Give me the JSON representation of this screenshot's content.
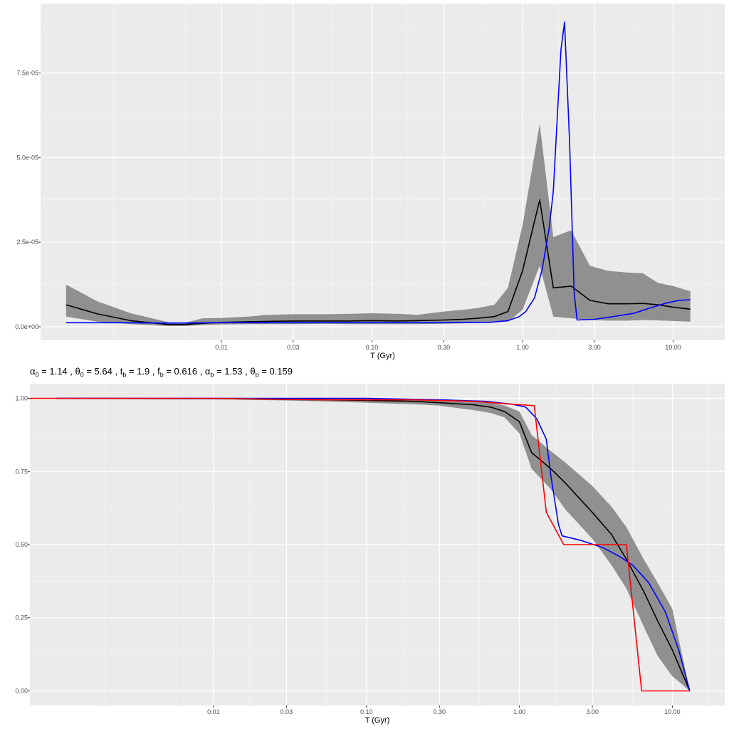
{
  "colors": {
    "panel_bg": "#EBEBEB",
    "grid_major": "#FFFFFF",
    "ribbon": "#808080",
    "median": "#000000",
    "blue_series": "#0000FF",
    "red_series": "#FF0000"
  },
  "subtitle": {
    "parts": [
      {
        "sym": "α",
        "sub": "0",
        "val": " = 1.14 , "
      },
      {
        "sym": "θ",
        "sub": "0",
        "val": " = 5.64 , "
      },
      {
        "sym": "t",
        "sub": "b",
        "val": " = 1.9 , "
      },
      {
        "sym": "f",
        "sub": "b",
        "val": " = 0.616 , "
      },
      {
        "sym": "α",
        "sub": "b",
        "val": " = 1.53 , "
      },
      {
        "sym": "θ",
        "sub": "b",
        "val": " = 0.159"
      }
    ]
  },
  "chart_data": [
    {
      "type": "line",
      "xlabel": "T (Gyr)",
      "ylabel": "",
      "x_scale": "log10",
      "xlim": [
        0.00063,
        22.0
      ],
      "ylim": [
        -4e-06,
        9.55e-05
      ],
      "x_ticks": [
        {
          "value": 0.01,
          "label": "0.01"
        },
        {
          "value": 0.03,
          "label": "0.03"
        },
        {
          "value": 0.1,
          "label": "0.10"
        },
        {
          "value": 0.3,
          "label": "0.30"
        },
        {
          "value": 1,
          "label": "1.00"
        },
        {
          "value": 3,
          "label": "3.00"
        },
        {
          "value": 10,
          "label": "10.00"
        }
      ],
      "y_ticks": [
        {
          "value": 0,
          "label": "0.0e+00"
        },
        {
          "value": 2.5e-05,
          "label": "2.5e-05"
        },
        {
          "value": 5e-05,
          "label": "5.0e-05"
        },
        {
          "value": 7.5e-05,
          "label": "7.5e-05"
        }
      ],
      "grid": true,
      "ribbon": {
        "x": [
          0.00093,
          0.0015,
          0.0025,
          0.0045,
          0.0058,
          0.0075,
          0.01,
          0.015,
          0.02,
          0.03,
          0.05,
          0.07,
          0.1,
          0.15,
          0.2,
          0.3,
          0.4,
          0.5,
          0.65,
          0.8,
          1.0,
          1.3,
          1.6,
          2.1,
          2.8,
          3.7,
          5.0,
          6.3,
          7.9,
          10.0,
          13.0
        ],
        "lower": [
          3e-06,
          1.5e-06,
          8e-07,
          2e-07,
          2e-07,
          5e-07,
          7e-07,
          8e-07,
          8e-07,
          8e-07,
          9e-07,
          8e-07,
          8e-07,
          8e-07,
          8e-07,
          9e-07,
          1e-06,
          1.3e-06,
          1.4e-06,
          1.5e-06,
          5e-06,
          1.8e-05,
          3e-06,
          2.5e-06,
          2e-06,
          1.8e-06,
          1.8e-06,
          2e-06,
          1.9e-06,
          1.7e-06,
          1.5e-06
        ],
        "upper": [
          1.25e-05,
          7.5e-06,
          4e-06,
          1.3e-06,
          1.2e-06,
          2.5e-06,
          2.6e-06,
          3e-06,
          3.5e-06,
          3.7e-06,
          3.7e-06,
          3.8e-06,
          4e-06,
          3.8e-06,
          3.5e-06,
          4.5e-06,
          5e-06,
          5.5e-06,
          6.5e-06,
          1.15e-05,
          3e-05,
          6e-05,
          2.65e-05,
          2.85e-05,
          1.8e-05,
          1.65e-05,
          1.6e-05,
          1.58e-05,
          1.3e-05,
          1.2e-05,
          1.05e-05
        ]
      },
      "series": [
        {
          "values_x": [
            0.00093,
            0.0015,
            0.0025,
            0.0045,
            0.0058,
            0.0075,
            0.01,
            0.015,
            0.02,
            0.03,
            0.05,
            0.07,
            0.1,
            0.15,
            0.2,
            0.3,
            0.4,
            0.5,
            0.65,
            0.8,
            1.0,
            1.3,
            1.6,
            2.1,
            2.8,
            3.7,
            5.0,
            6.3,
            7.9,
            10.0,
            13.0
          ],
          "values_y": [
            6.5e-06,
            3.8e-06,
            1.8e-06,
            6e-07,
            7e-07,
            1e-06,
            1.3e-06,
            1.5e-06,
            1.6e-06,
            1.7e-06,
            1.7e-06,
            1.7e-06,
            1.8e-06,
            1.7e-06,
            1.8e-06,
            2e-06,
            2.2e-06,
            2.5e-06,
            3e-06,
            4.5e-06,
            1.65e-05,
            3.75e-05,
            1.15e-05,
            1.2e-05,
            7.8e-06,
            6.8e-06,
            6.8e-06,
            6.9e-06,
            6.5e-06,
            5.8e-06,
            5.2e-06
          ],
          "color": "#000000"
        },
        {
          "values_x": [
            0.00093,
            0.002,
            0.0045,
            0.01,
            0.03,
            0.1,
            0.3,
            0.6,
            0.8,
            0.95,
            1.05,
            1.2,
            1.35,
            1.5,
            1.6,
            1.7,
            1.8,
            1.9,
            2.05,
            2.2,
            2.3,
            3.0,
            4.0,
            5.5,
            7.0,
            9.0,
            11.0,
            13.0
          ],
          "values_y": [
            1.2e-06,
            1.2e-06,
            1.1e-06,
            1.2e-06,
            1.2e-06,
            1.2e-06,
            1.2e-06,
            1.3e-06,
            1.8e-06,
            3e-06,
            4.5e-06,
            8.5e-06,
            1.7e-05,
            2.9e-05,
            4e-05,
            6.2e-05,
            8.2e-05,
            9e-05,
            5.5e-05,
            1e-05,
            2e-06,
            2.2e-06,
            3e-06,
            4e-06,
            5.5e-06,
            7e-06,
            7.8e-06,
            8e-06
          ],
          "color": "#0000FF"
        }
      ]
    },
    {
      "type": "line",
      "xlabel": "T (Gyr)",
      "ylabel": "",
      "x_scale": "log10",
      "xlim": [
        0.00063,
        22.0
      ],
      "ylim": [
        -0.05,
        1.05
      ],
      "x_ticks": [
        {
          "value": 0.01,
          "label": "0.01"
        },
        {
          "value": 0.03,
          "label": "0.03"
        },
        {
          "value": 0.1,
          "label": "0.10"
        },
        {
          "value": 0.3,
          "label": "0.30"
        },
        {
          "value": 1,
          "label": "1.00"
        },
        {
          "value": 3,
          "label": "3.00"
        },
        {
          "value": 10,
          "label": "10.00"
        }
      ],
      "y_ticks": [
        {
          "value": 0,
          "label": "0.00"
        },
        {
          "value": 0.25,
          "label": "0.25"
        },
        {
          "value": 0.5,
          "label": "0.50"
        },
        {
          "value": 0.75,
          "label": "0.75"
        },
        {
          "value": 1,
          "label": "1.00"
        }
      ],
      "grid": true,
      "ribbon": {
        "x": [
          0.00093,
          0.01,
          0.05,
          0.1,
          0.2,
          0.3,
          0.5,
          0.65,
          0.8,
          1.0,
          1.2,
          1.6,
          2.0,
          3.0,
          4.0,
          5.0,
          6.5,
          8.0,
          10.0,
          13.0
        ],
        "lower": [
          1.0,
          0.998,
          0.99,
          0.985,
          0.98,
          0.975,
          0.96,
          0.95,
          0.935,
          0.88,
          0.76,
          0.69,
          0.62,
          0.52,
          0.43,
          0.35,
          0.22,
          0.12,
          0.05,
          0.0
        ],
        "upper": [
          1.0,
          1.0,
          1.0,
          1.0,
          0.998,
          0.995,
          0.99,
          0.985,
          0.975,
          0.955,
          0.875,
          0.82,
          0.78,
          0.7,
          0.63,
          0.56,
          0.45,
          0.37,
          0.28,
          0.0
        ]
      },
      "series": [
        {
          "values_x": [
            0.00093,
            0.01,
            0.05,
            0.1,
            0.2,
            0.3,
            0.5,
            0.65,
            0.8,
            1.0,
            1.2,
            1.6,
            2.0,
            3.0,
            4.0,
            5.0,
            6.5,
            8.0,
            10.0,
            13.0
          ],
          "values_y": [
            1.0,
            0.999,
            0.995,
            0.993,
            0.99,
            0.985,
            0.978,
            0.97,
            0.955,
            0.92,
            0.815,
            0.76,
            0.71,
            0.61,
            0.535,
            0.45,
            0.34,
            0.24,
            0.14,
            0.0
          ],
          "color": "#000000"
        },
        {
          "values_x": [
            0.00093,
            0.01,
            0.1,
            0.3,
            0.6,
            0.9,
            1.1,
            1.3,
            1.5,
            1.6,
            1.8,
            1.9,
            2.5,
            3.5,
            4.5,
            5.5,
            7.0,
            9.0,
            11.0,
            13.0
          ],
          "values_y": [
            1.0,
            1.0,
            1.0,
            0.995,
            0.99,
            0.98,
            0.97,
            0.93,
            0.86,
            0.74,
            0.57,
            0.53,
            0.515,
            0.49,
            0.46,
            0.43,
            0.37,
            0.27,
            0.14,
            0.0
          ],
          "color": "#0000FF"
        },
        {
          "values_x": [
            0.00063,
            0.01,
            0.05,
            0.1,
            0.2,
            0.5,
            0.9,
            1.25,
            1.5,
            1.95,
            2.5,
            5.0,
            6.3,
            13.0
          ],
          "values_y": [
            1.0,
            1.0,
            0.995,
            0.995,
            0.995,
            0.99,
            0.98,
            0.975,
            0.61,
            0.5,
            0.5,
            0.5,
            0.0,
            0.0
          ],
          "color": "#FF0000"
        }
      ]
    }
  ]
}
